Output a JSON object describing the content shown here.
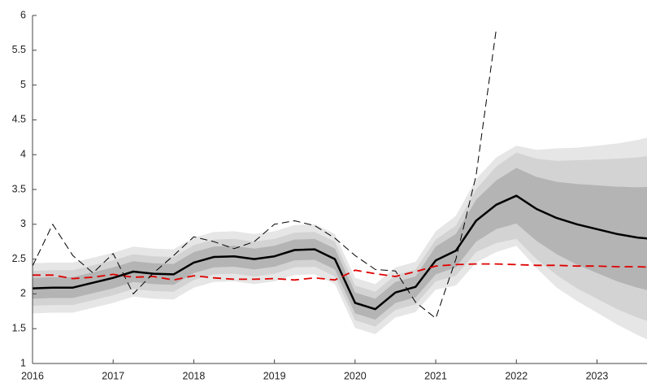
{
  "chart_data": {
    "type": "fan",
    "x": [
      2016,
      2016.25,
      2016.5,
      2016.75,
      2017,
      2017.25,
      2017.5,
      2017.75,
      2018,
      2018.25,
      2018.5,
      2018.75,
      2019,
      2019.25,
      2019.5,
      2019.75,
      2020,
      2020.25,
      2020.5,
      2020.75,
      2021,
      2021.25,
      2021.5,
      2021.75,
      2022,
      2022.25,
      2022.5,
      2022.75,
      2023,
      2023.25,
      2023.5,
      2023.75
    ],
    "xlim": [
      2016,
      2023.62
    ],
    "ylim": [
      1,
      6
    ],
    "xticks": [
      2016,
      2017,
      2018,
      2019,
      2020,
      2021,
      2022,
      2023
    ],
    "yticks": [
      1,
      1.5,
      2,
      2.5,
      3,
      3.5,
      4,
      4.5,
      5,
      5.5,
      6
    ],
    "bands": [
      {
        "color": "#e6e6e6",
        "lower": [
          1.72,
          1.73,
          1.73,
          1.8,
          1.87,
          1.96,
          1.93,
          1.92,
          2.09,
          2.17,
          2.18,
          2.14,
          2.18,
          2.27,
          2.28,
          2.14,
          1.51,
          1.42,
          1.66,
          1.74,
          2.06,
          2.12,
          2.45,
          2.6,
          2.69,
          2.37,
          2.09,
          1.9,
          1.73,
          1.56,
          1.41,
          1.28
        ],
        "upper": [
          2.44,
          2.45,
          2.45,
          2.52,
          2.59,
          2.68,
          2.65,
          2.64,
          2.81,
          2.89,
          2.9,
          2.86,
          2.9,
          2.99,
          3.0,
          2.86,
          2.23,
          2.14,
          2.38,
          2.46,
          2.9,
          3.12,
          3.65,
          3.96,
          4.13,
          4.07,
          4.09,
          4.1,
          4.13,
          4.16,
          4.21,
          4.28
        ]
      },
      {
        "color": "#d3d3d3",
        "lower": [
          1.83,
          1.84,
          1.84,
          1.91,
          1.98,
          2.07,
          2.04,
          2.03,
          2.2,
          2.28,
          2.29,
          2.25,
          2.29,
          2.38,
          2.39,
          2.25,
          1.62,
          1.53,
          1.77,
          1.85,
          2.18,
          2.26,
          2.6,
          2.73,
          2.79,
          2.5,
          2.27,
          2.08,
          1.93,
          1.78,
          1.66,
          1.56
        ],
        "upper": [
          2.33,
          2.34,
          2.34,
          2.41,
          2.48,
          2.57,
          2.54,
          2.53,
          2.7,
          2.78,
          2.79,
          2.75,
          2.79,
          2.88,
          2.89,
          2.75,
          2.12,
          2.03,
          2.27,
          2.35,
          2.78,
          2.98,
          3.5,
          3.83,
          4.03,
          3.94,
          3.91,
          3.92,
          3.93,
          3.94,
          3.96,
          4.0
        ]
      },
      {
        "color": "#b4b4b4",
        "lower": [
          1.93,
          1.94,
          1.94,
          2.01,
          2.08,
          2.17,
          2.14,
          2.13,
          2.3,
          2.38,
          2.39,
          2.35,
          2.39,
          2.48,
          2.49,
          2.35,
          1.72,
          1.63,
          1.87,
          1.95,
          2.28,
          2.38,
          2.75,
          2.93,
          3.01,
          2.76,
          2.57,
          2.42,
          2.3,
          2.18,
          2.09,
          2.02
        ],
        "upper": [
          2.23,
          2.24,
          2.24,
          2.31,
          2.38,
          2.47,
          2.44,
          2.43,
          2.6,
          2.68,
          2.69,
          2.65,
          2.69,
          2.78,
          2.79,
          2.65,
          2.02,
          1.93,
          2.17,
          2.25,
          2.68,
          2.86,
          3.35,
          3.63,
          3.81,
          3.68,
          3.61,
          3.58,
          3.56,
          3.54,
          3.53,
          3.54
        ]
      }
    ],
    "series": [
      {
        "color": "#000000",
        "dash": "solid",
        "width": 2.5,
        "values": [
          2.08,
          2.09,
          2.09,
          2.16,
          2.23,
          2.32,
          2.29,
          2.28,
          2.45,
          2.53,
          2.54,
          2.5,
          2.54,
          2.63,
          2.64,
          2.5,
          1.87,
          1.78,
          2.02,
          2.1,
          2.48,
          2.62,
          3.05,
          3.28,
          3.41,
          3.22,
          3.09,
          3.0,
          2.93,
          2.86,
          2.81,
          2.78
        ]
      },
      {
        "color": "#e00000",
        "dash": "dashed",
        "width": 1.8,
        "values": [
          2.27,
          2.27,
          2.22,
          2.24,
          2.28,
          2.24,
          2.25,
          2.2,
          2.26,
          2.23,
          2.21,
          2.21,
          2.22,
          2.2,
          2.23,
          2.2,
          2.34,
          2.29,
          2.25,
          2.32,
          2.4,
          2.42,
          2.43,
          2.43,
          2.42,
          2.41,
          2.41,
          2.4,
          2.4,
          2.39,
          2.39,
          2.38
        ]
      },
      {
        "color": "#000000",
        "dash": "dashed",
        "width": 1,
        "values": [
          2.4,
          3.0,
          2.55,
          2.3,
          2.58,
          2.0,
          2.3,
          2.55,
          2.82,
          2.75,
          2.65,
          2.75,
          3.0,
          3.05,
          2.98,
          2.8,
          2.55,
          2.35,
          2.33,
          1.88,
          1.65,
          2.5,
          3.7,
          5.8,
          null,
          null,
          null,
          null,
          null,
          null,
          null,
          null
        ]
      }
    ]
  }
}
